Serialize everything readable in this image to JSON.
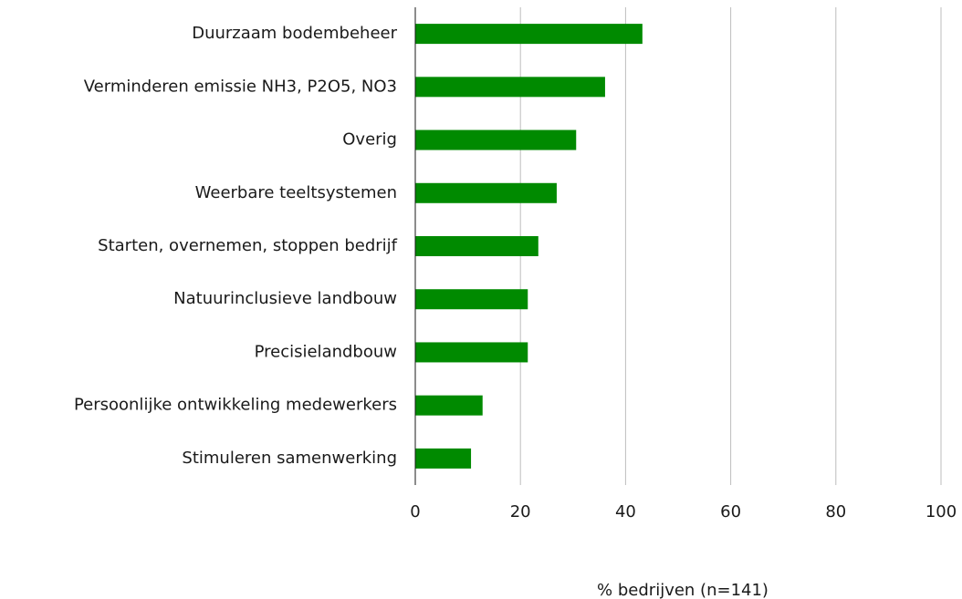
{
  "chart_data": {
    "type": "bar",
    "orientation": "horizontal",
    "categories": [
      "Duurzaam bodembeheer",
      "Verminderen emissie NH3, P2O5, NO3",
      "Overig",
      "Weerbare teeltsystemen",
      "Starten, overnemen, stoppen bedrijf",
      "Natuurinclusieve landbouw",
      "Precisielandbouw",
      "Persoonlijke ontwikkeling medewerkers",
      "Stimuleren samenwerking"
    ],
    "values": [
      43.2,
      36.1,
      30.6,
      26.9,
      23.4,
      21.4,
      21.4,
      12.8,
      10.6
    ],
    "color": "#008a00",
    "xlabel": "% bedrijven (n=141)",
    "xlim": [
      0,
      100
    ],
    "xticks": [
      0,
      20,
      40,
      60,
      80,
      100
    ],
    "grid": true
  }
}
